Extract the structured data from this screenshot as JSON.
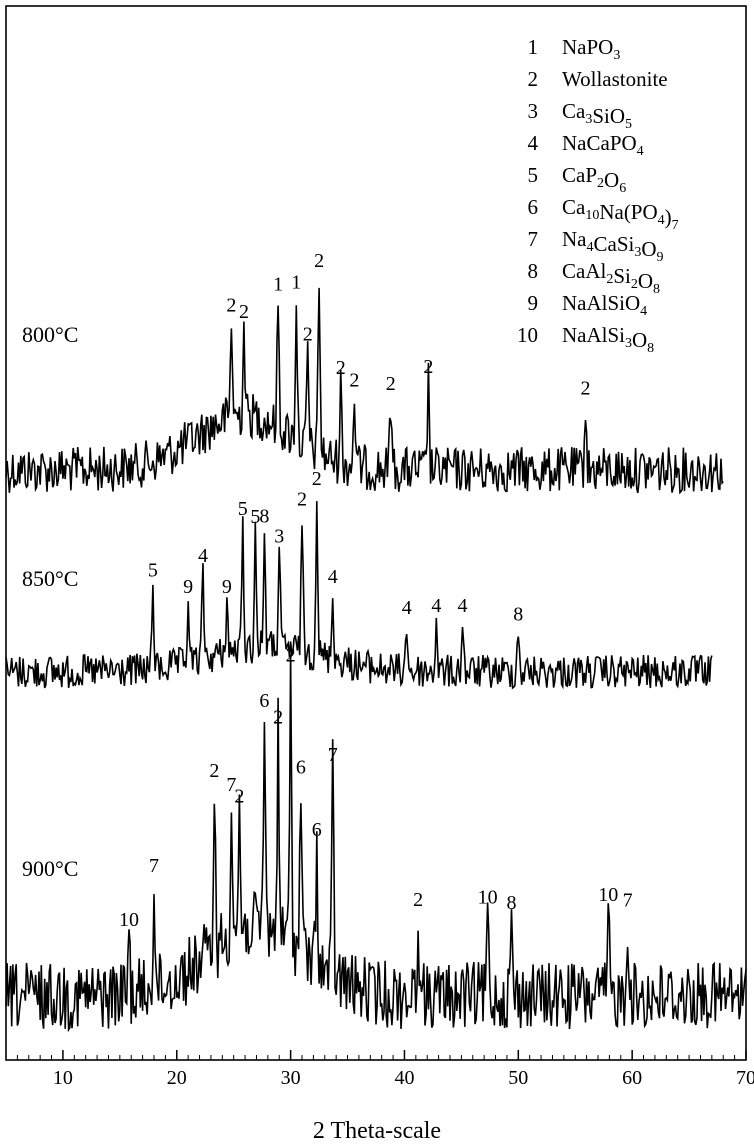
{
  "chart_data": {
    "type": "line",
    "xlabel": "2 Theta-scale",
    "ylabel": "",
    "xlim": [
      5,
      70
    ],
    "xticks": [
      10,
      20,
      30,
      40,
      50,
      60,
      70
    ],
    "grid": false,
    "legend_position": "top-right",
    "legend": [
      {
        "num": "1",
        "name": "NaPO",
        "sub": "3",
        "tail": ""
      },
      {
        "num": "2",
        "name": "Wollastonite",
        "sub": "",
        "tail": ""
      },
      {
        "num": "3",
        "name": "Ca",
        "sub": "3",
        "tail": "SiO",
        "sub2": "5"
      },
      {
        "num": "4",
        "name": "NaCaPO",
        "sub": "4",
        "tail": ""
      },
      {
        "num": "5",
        "name": "CaP",
        "sub": "2",
        "tail": "O",
        "sub2": "6"
      },
      {
        "num": "6",
        "name": "Ca",
        "sub": "10",
        "tail": "Na(PO",
        "sub2": "4",
        "tail2": ")",
        "sub3": "7"
      },
      {
        "num": "7",
        "name": "Na",
        "sub": "4",
        "tail": "CaSi",
        "sub2": "3",
        "tail2": "O",
        "sub3": "9"
      },
      {
        "num": "8",
        "name": "CaAl",
        "sub": "2",
        "tail": "Si",
        "sub2": "2",
        "tail2": "O",
        "sub3": "8"
      },
      {
        "num": "9",
        "name": "NaAlSiO",
        "sub": "4",
        "tail": ""
      },
      {
        "num": "10",
        "name": "NaAlSi",
        "sub": "3",
        "tail": "O",
        "sub2": "8"
      }
    ],
    "series": [
      {
        "name": "800°C",
        "x_range": [
          5,
          68
        ],
        "peaks": [
          {
            "x": 24.8,
            "h": 0.55,
            "label": "2"
          },
          {
            "x": 25.9,
            "h": 0.5,
            "label": "2"
          },
          {
            "x": 28.9,
            "h": 0.72,
            "label": "1"
          },
          {
            "x": 30.5,
            "h": 0.8,
            "label": "1"
          },
          {
            "x": 31.5,
            "h": 0.55,
            "label": "2"
          },
          {
            "x": 32.5,
            "h": 1.0,
            "label": "2"
          },
          {
            "x": 34.4,
            "h": 0.45,
            "label": "2"
          },
          {
            "x": 35.6,
            "h": 0.4,
            "label": "2"
          },
          {
            "x": 38.8,
            "h": 0.4,
            "label": "2"
          },
          {
            "x": 42.1,
            "h": 0.5,
            "label": "2"
          },
          {
            "x": 55.9,
            "h": 0.38,
            "label": "2"
          }
        ]
      },
      {
        "name": "850°C",
        "x_range": [
          5,
          67
        ],
        "peaks": [
          {
            "x": 17.9,
            "h": 0.52,
            "label": "5"
          },
          {
            "x": 21.0,
            "h": 0.38,
            "label": "9"
          },
          {
            "x": 22.3,
            "h": 0.55,
            "label": "4"
          },
          {
            "x": 24.4,
            "h": 0.32,
            "label": "9"
          },
          {
            "x": 25.8,
            "h": 0.78,
            "label": "5"
          },
          {
            "x": 26.9,
            "h": 0.72,
            "label": "5"
          },
          {
            "x": 27.7,
            "h": 0.72,
            "label": "8"
          },
          {
            "x": 29.0,
            "h": 0.6,
            "label": "3"
          },
          {
            "x": 31.0,
            "h": 0.85,
            "label": "2"
          },
          {
            "x": 32.3,
            "h": 1.0,
            "label": "2"
          },
          {
            "x": 33.7,
            "h": 0.42,
            "label": "4"
          },
          {
            "x": 40.2,
            "h": 0.3,
            "label": "4"
          },
          {
            "x": 42.8,
            "h": 0.32,
            "label": "4"
          },
          {
            "x": 45.1,
            "h": 0.32,
            "label": "4"
          },
          {
            "x": 50.0,
            "h": 0.27,
            "label": "8"
          }
        ]
      },
      {
        "name": "900°C",
        "x_range": [
          5,
          70
        ],
        "peaks": [
          {
            "x": 15.8,
            "h": 0.22,
            "label": "10"
          },
          {
            "x": 18.0,
            "h": 0.4,
            "label": "7"
          },
          {
            "x": 23.3,
            "h": 0.6,
            "label": "2"
          },
          {
            "x": 24.8,
            "h": 0.5,
            "label": "7"
          },
          {
            "x": 25.5,
            "h": 0.44,
            "label": "2"
          },
          {
            "x": 27.7,
            "h": 0.78,
            "label": "6"
          },
          {
            "x": 28.9,
            "h": 0.74,
            "label": "2"
          },
          {
            "x": 30.0,
            "h": 1.0,
            "label": "2"
          },
          {
            "x": 30.9,
            "h": 0.62,
            "label": "6"
          },
          {
            "x": 32.3,
            "h": 0.44,
            "label": "6"
          },
          {
            "x": 33.7,
            "h": 0.76,
            "label": "7"
          },
          {
            "x": 41.2,
            "h": 0.3,
            "label": "2"
          },
          {
            "x": 47.3,
            "h": 0.31,
            "label": "10"
          },
          {
            "x": 49.4,
            "h": 0.29,
            "label": "8"
          },
          {
            "x": 57.9,
            "h": 0.32,
            "label": "10"
          },
          {
            "x": 59.6,
            "h": 0.3,
            "label": "7"
          }
        ]
      }
    ]
  }
}
